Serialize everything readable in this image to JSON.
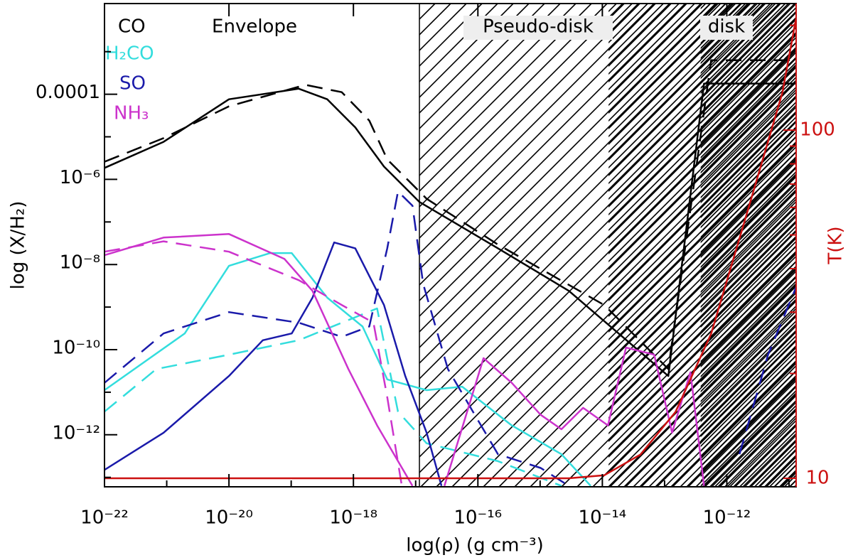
{
  "chart_data": {
    "type": "line",
    "xlabel": "log(ρ) (g cm⁻³)",
    "ylabel": "log (X/H₂)",
    "y2label": "T(K)",
    "xscale": "log",
    "yscale": "log",
    "y2scale": "log",
    "xlim": [
      1e-22,
      1.3e-11
    ],
    "ylim": [
      6e-14,
      0.0135
    ],
    "y2lim": [
      9.45,
      231
    ],
    "xticks": [
      {
        "value": 1e-22,
        "label": "10⁻²²"
      },
      {
        "value": 1e-20,
        "label": "10⁻²⁰"
      },
      {
        "value": 1e-18,
        "label": "10⁻¹⁸"
      },
      {
        "value": 1e-16,
        "label": "10⁻¹⁶"
      },
      {
        "value": 1e-14,
        "label": "10⁻¹⁴"
      },
      {
        "value": 1e-12,
        "label": "10⁻¹²"
      }
    ],
    "xminor": [
      1e-21,
      1e-19,
      1e-17,
      1e-15,
      1e-13,
      1e-11
    ],
    "yticks": [
      {
        "value": 0.0001,
        "label": "0.0001"
      },
      {
        "value": 1e-06,
        "label": "10⁻⁶"
      },
      {
        "value": 1e-08,
        "label": "10⁻⁸"
      },
      {
        "value": 1e-10,
        "label": "10⁻¹⁰"
      },
      {
        "value": 1e-12,
        "label": "10⁻¹²"
      }
    ],
    "yminor": [
      1e-13,
      1e-11,
      1e-09,
      1e-07,
      1e-05,
      0.001
    ],
    "y2ticks": [
      10,
      100
    ],
    "y2minor": [
      20,
      30,
      40,
      50,
      60,
      70,
      80,
      90,
      200
    ],
    "regions": [
      {
        "label": "Envelope"
      },
      {
        "label": "Pseudo-disk",
        "from": 1.15e-17
      },
      {
        "label": "disk",
        "from": 3.8e-13
      }
    ],
    "hatch": [
      {
        "from": 1.15e-17,
        "spacing": 22
      },
      {
        "from": 1.26e-14,
        "spacing": 11
      },
      {
        "from": 3.8e-13,
        "spacing": 7
      }
    ],
    "series": [
      {
        "name": "CO",
        "color": "#000000",
        "lines": [
          {
            "style": "solid",
            "x": [
              1e-22,
              8.9e-22,
              1e-20,
              1.32e-19,
              3.8e-19,
              1.07e-18,
              3.1e-18,
              1.15e-17,
              2.1e-16,
              2.9e-15,
              1.15e-13,
              4.3e-13,
              1.3e-11
            ],
            "values": [
              1.86e-06,
              7.6e-06,
              7.6e-05,
              0.000135,
              7.6e-05,
              1.66e-05,
              2e-06,
              2.95e-07,
              2.4e-08,
              2.4e-09,
              2.4e-11,
              0.000178,
              0.000178
            ]
          },
          {
            "style": "dashed",
            "x": [
              1e-22,
              8.9e-22,
              1e-20,
              1.7e-19,
              6.5e-19,
              1.8e-18,
              3.5e-18,
              1.5e-17,
              2.1e-16,
              1.07e-14,
              1.15e-13,
              5.6e-13,
              1.3e-11
            ],
            "values": [
              2.6e-06,
              9.3e-06,
              5.2e-05,
              0.000166,
              0.000112,
              2.4e-05,
              2.95e-06,
              3.5e-07,
              2.95e-08,
              1.12e-09,
              3.5e-11,
              0.00063,
              0.00063
            ]
          }
        ]
      },
      {
        "name": "H₂CO",
        "color": "#33dddd",
        "lines": [
          {
            "style": "solid",
            "x": [
              1e-22,
              1.95e-21,
              1e-20,
              4.6e-20,
              1.02e-19,
              3.8e-19,
              1.4e-18,
              3.5e-18,
              1.5e-17,
              5.6e-17,
              3.5e-16,
              2.2e-15,
              6.5e-15
            ],
            "values": [
              1.12e-11,
              2.4e-10,
              9.3e-09,
              1.86e-08,
              1.86e-08,
              1.66e-09,
              3.5e-10,
              2e-11,
              1.12e-11,
              1.35e-11,
              1.66e-12,
              3.5e-13,
              6.3e-14
            ]
          },
          {
            "style": "dashed",
            "x": [
              1e-22,
              6.8e-22,
              1e-20,
              1.32e-19,
              6.5e-19,
              2.4e-18,
              5.2e-18,
              1.5e-17,
              2.1e-16,
              2.2e-15
            ],
            "values": [
              3.5e-12,
              3.5e-11,
              7.6e-11,
              1.66e-10,
              4.3e-10,
              9.3e-10,
              3.5e-12,
              6.3e-13,
              2.4e-13,
              6.3e-14
            ]
          }
        ]
      },
      {
        "name": "SO",
        "color": "#1a1aaa",
        "lines": [
          {
            "style": "solid",
            "x": [
              1e-22,
              8.9e-22,
              1e-20,
              3.5e-20,
              1.02e-19,
              2.2e-19,
              4.9e-19,
              1.07e-18,
              3.1e-18,
              6.8e-18,
              1.5e-17,
              2.6e-17
            ],
            "values": [
              1.5e-13,
              1.12e-12,
              2.4e-11,
              1.66e-10,
              2.4e-10,
              1.66e-09,
              3.3e-08,
              2.4e-08,
              1.12e-09,
              2.4e-11,
              1.12e-12,
              6.3e-14
            ]
          },
          {
            "style": "dashed",
            "x": [
              1e-22,
              8.9e-22,
              1e-20,
              1.32e-19,
              6.5e-19,
              1.8e-18,
              3.5e-18,
              5.2e-18,
              8.9e-18,
              1.32e-17,
              3.3e-17,
              2.1e-16,
              1.02e-15,
              2.9e-15,
              null,
              1.6e-12,
              4.6e-12,
              1.3e-11
            ],
            "values": [
              1.66e-11,
              2.4e-10,
              7.6e-10,
              4.3e-10,
              2e-10,
              3.5e-10,
              2.4e-08,
              5.2e-07,
              2.4e-07,
              3.5e-09,
              3.5e-11,
              3.5e-13,
              1.66e-13,
              6.3e-14,
              null,
              3.5e-13,
              7.6e-11,
              2.95e-09
            ]
          }
        ]
      },
      {
        "name": "NH₃",
        "color": "#cc33cc",
        "lines": [
          {
            "style": "solid",
            "x": [
              1e-22,
              8.9e-22,
              1e-20,
              7.8e-20,
              2.2e-19,
              8.3e-19,
              2.4e-18,
              8.9e-18,
              null,
              2.9e-17,
              1.23e-16,
              3.5e-16,
              1.02e-15,
              2.2e-15,
              4.9e-15,
              1.23e-14,
              2.4e-14,
              6.8e-14,
              1.32e-13,
              2.6e-13,
              4.3e-13
            ],
            "values": [
              1.66e-08,
              4.3e-08,
              5.2e-08,
              1.35e-08,
              2.4e-09,
              3.5e-11,
              1.66e-12,
              6.3e-14,
              null,
              6.3e-14,
              6.3e-11,
              1.66e-11,
              2.95e-12,
              1.35e-12,
              4.3e-12,
              1.66e-12,
              1.12e-10,
              7.6e-11,
              1.12e-12,
              2.95e-11,
              6.3e-14
            ]
          },
          {
            "style": "dashed",
            "x": [
              1e-22,
              8.9e-22,
              1e-20,
              1.32e-19,
              6.5e-19,
              2.1e-18,
              3.5e-18,
              6e-18
            ],
            "values": [
              2e-08,
              3.5e-08,
              2e-08,
              4.3e-09,
              1.12e-09,
              4.3e-10,
              7.6e-12,
              6.3e-14
            ]
          }
        ]
      }
    ],
    "temperature": {
      "color": "#cc1111",
      "axis": "y2",
      "x": [
        1e-22,
        2.9e-15,
        1.07e-14,
        4.1e-14,
        1.5e-13,
        5.6e-13,
        2.1e-12,
        7.8e-12,
        1.3e-11
      ],
      "values": [
        10,
        10,
        10.2,
        11.7,
        15.5,
        26,
        57.6,
        128,
        210
      ]
    }
  }
}
